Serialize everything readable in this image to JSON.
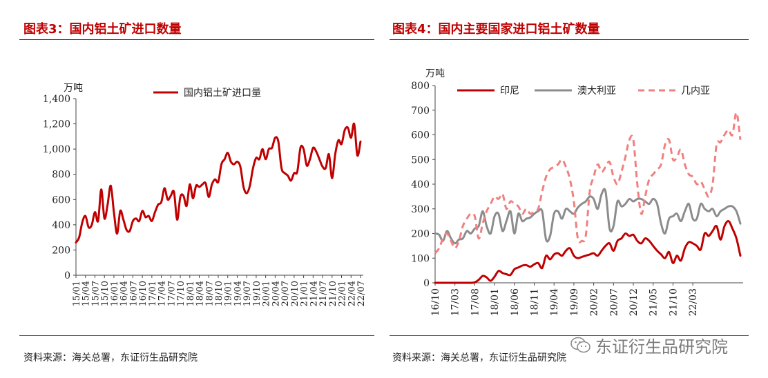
{
  "left": {
    "title": "图表3：国内铝土矿进口数量",
    "source": "资料来源：海关总署，东证衍生品研究院"
  },
  "right": {
    "title": "图表4：国内主要国家进口铝土矿数量",
    "source": "资料来源：海关总署，东证衍生品研究院"
  },
  "watermark": {
    "text": "东证衍生品研究院",
    "icon": "wechat-icon"
  },
  "chart_data": [
    {
      "type": "line",
      "unit_label": "万吨",
      "ylim": [
        0,
        1400
      ],
      "yticks": [
        0,
        200,
        400,
        600,
        800,
        1000,
        1200,
        1400
      ],
      "ytick_labels": [
        "0",
        "200",
        "400",
        "600",
        "800",
        "1,000",
        "1,200",
        "1,400"
      ],
      "x_start": "15/01",
      "x_tick_labels": [
        "15/01",
        "15/04",
        "15/07",
        "15/10",
        "16/01",
        "16/04",
        "16/07",
        "16/10",
        "17/01",
        "17/04",
        "17/07",
        "17/10",
        "18/01",
        "18/04",
        "18/07",
        "18/10",
        "19/01",
        "19/04",
        "19/07",
        "19/10",
        "20/01",
        "20/04",
        "20/07",
        "20/10",
        "21/01",
        "21/04",
        "21/07",
        "21/10",
        "22/01",
        "22/04",
        "22/07"
      ],
      "legend_position": "top",
      "grid": false,
      "series": [
        {
          "name": "国内铝土矿进口量",
          "color": "#c00000",
          "values": [
            260,
            300,
            420,
            470,
            380,
            400,
            500,
            430,
            680,
            450,
            560,
            710,
            500,
            330,
            510,
            440,
            360,
            350,
            430,
            450,
            430,
            510,
            460,
            470,
            430,
            500,
            560,
            580,
            690,
            600,
            630,
            660,
            440,
            620,
            630,
            550,
            720,
            610,
            710,
            700,
            720,
            730,
            620,
            720,
            760,
            740,
            880,
            920,
            970,
            900,
            880,
            900,
            860,
            700,
            650,
            710,
            850,
            930,
            920,
            1000,
            920,
            1000,
            1010,
            1090,
            1060,
            850,
            810,
            790,
            750,
            810,
            820,
            1010,
            1000,
            870,
            920,
            1010,
            980,
            920,
            860,
            850,
            960,
            770,
            960,
            1070,
            1040,
            1150,
            1170,
            1090,
            1200,
            950,
            1060
          ]
        }
      ]
    },
    {
      "type": "line",
      "unit_label": "万吨",
      "ylim": [
        0,
        800
      ],
      "yticks": [
        0,
        100,
        200,
        300,
        400,
        500,
        600,
        700,
        800
      ],
      "x_start": "16/10",
      "x_tick_labels": [
        "16/10",
        "17/03",
        "17/08",
        "18/01",
        "18/06",
        "18/11",
        "19/04",
        "19/09",
        "20/02",
        "20/07",
        "20/12",
        "21/05",
        "21/10",
        "22/03"
      ],
      "legend_position": "top",
      "grid": false,
      "series": [
        {
          "name": "印尼",
          "color": "#c00000",
          "style": "solid",
          "values": [
            0,
            0,
            0,
            0,
            0,
            0,
            0,
            0,
            0,
            0,
            2,
            12,
            28,
            22,
            8,
            25,
            48,
            40,
            35,
            32,
            55,
            62,
            70,
            72,
            65,
            75,
            80,
            60,
            110,
            95,
            115,
            120,
            110,
            130,
            140,
            110,
            100,
            105,
            110,
            115,
            120,
            110,
            130,
            150,
            160,
            130,
            170,
            180,
            200,
            190,
            195,
            170,
            160,
            180,
            170,
            150,
            130,
            115,
            100,
            125,
            80,
            110,
            90,
            140,
            165,
            160,
            150,
            135,
            200,
            190,
            210,
            230,
            175,
            230,
            250,
            220,
            180,
            110
          ]
        },
        {
          "name": "澳大利亚",
          "color": "#8c8c8c",
          "style": "solid",
          "values": [
            200,
            195,
            170,
            210,
            180,
            160,
            175,
            180,
            210,
            200,
            220,
            230,
            290,
            230,
            200,
            270,
            280,
            210,
            250,
            290,
            200,
            280,
            250,
            260,
            265,
            280,
            290,
            290,
            175,
            190,
            280,
            290,
            260,
            300,
            290,
            280,
            305,
            320,
            330,
            350,
            340,
            300,
            360,
            370,
            220,
            230,
            330,
            310,
            320,
            340,
            330,
            340,
            340,
            330,
            320,
            340,
            320,
            240,
            200,
            260,
            270,
            280,
            250,
            290,
            320,
            260,
            260,
            320,
            300,
            290,
            300,
            270,
            290,
            300,
            310,
            310,
            290,
            240
          ]
        },
        {
          "name": "几内亚",
          "color": "#f08080",
          "style": "dashed",
          "values": [
            120,
            140,
            180,
            200,
            170,
            140,
            170,
            230,
            260,
            280,
            270,
            180,
            240,
            290,
            320,
            350,
            340,
            360,
            300,
            330,
            320,
            310,
            280,
            300,
            280,
            290,
            300,
            370,
            430,
            460,
            470,
            480,
            500,
            470,
            420,
            330,
            180,
            170,
            190,
            370,
            430,
            480,
            450,
            470,
            490,
            430,
            400,
            450,
            510,
            580,
            580,
            400,
            280,
            350,
            420,
            440,
            460,
            480,
            560,
            580,
            500,
            510,
            540,
            480,
            440,
            430,
            400,
            410,
            380,
            350,
            400,
            560,
            570,
            600,
            620,
            600,
            690,
            580
          ]
        }
      ]
    }
  ]
}
